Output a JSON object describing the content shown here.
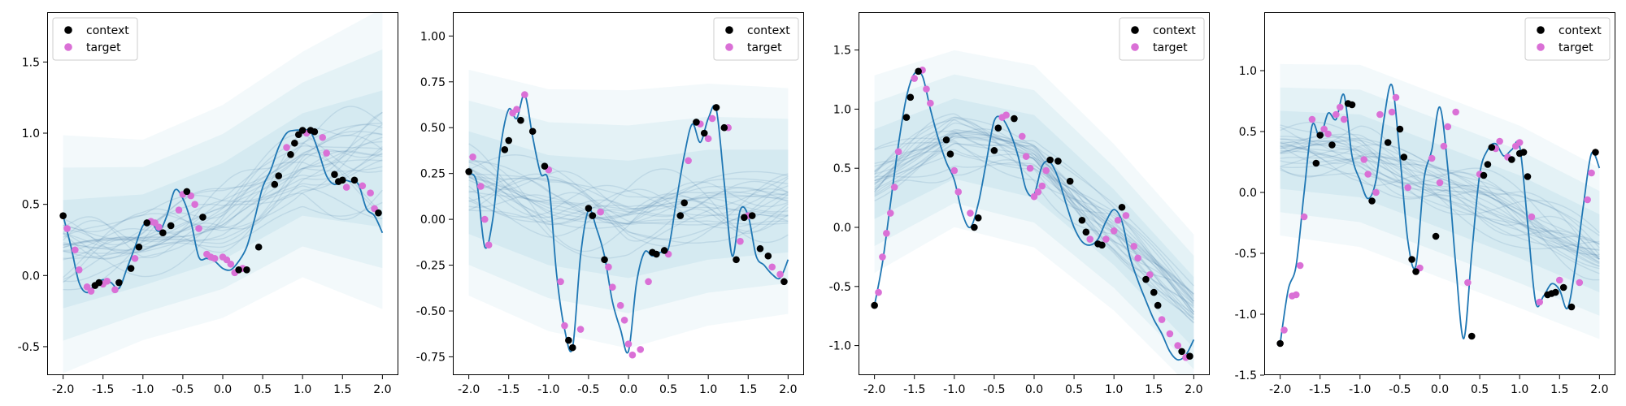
{
  "colors": {
    "context": "#000000",
    "target": "#da70d6",
    "truth_line": "#1f77b4",
    "samples": "#4a7ea8",
    "band": "#add8e6"
  },
  "chart_data": [
    {
      "type": "line",
      "xlim": [
        -2.2,
        2.2
      ],
      "ylim": [
        -0.7,
        1.85
      ],
      "xticks": [
        "-2.0",
        "-1.5",
        "-1.0",
        "-0.5",
        "0.0",
        "0.5",
        "1.0",
        "1.5",
        "2.0"
      ],
      "yticks": [
        "-0.5",
        "0.0",
        "0.5",
        "1.0",
        "1.5"
      ],
      "legend": {
        "position": "top-left",
        "entries": [
          "context",
          "target"
        ]
      },
      "truth": {
        "x": [
          -2.0,
          -1.9,
          -1.8,
          -1.7,
          -1.6,
          -1.5,
          -1.4,
          -1.3,
          -1.2,
          -1.1,
          -1.0,
          -0.9,
          -0.8,
          -0.7,
          -0.6,
          -0.5,
          -0.4,
          -0.3,
          -0.2,
          -0.1,
          0.0,
          0.1,
          0.2,
          0.3,
          0.4,
          0.5,
          0.6,
          0.7,
          0.8,
          0.9,
          1.0,
          1.1,
          1.2,
          1.3,
          1.4,
          1.5,
          1.6,
          1.7,
          1.8,
          1.9,
          2.0
        ],
        "y": [
          0.42,
          0.2,
          -0.05,
          -0.12,
          -0.06,
          -0.03,
          -0.05,
          -0.09,
          0.05,
          0.2,
          0.35,
          0.38,
          0.31,
          0.42,
          0.6,
          0.54,
          0.38,
          0.13,
          0.12,
          0.1,
          0.05,
          0.04,
          0.1,
          0.2,
          0.4,
          0.62,
          0.74,
          0.9,
          1.0,
          1.02,
          1.02,
          1.01,
          0.87,
          0.7,
          0.64,
          0.67,
          0.66,
          0.64,
          0.47,
          0.42,
          0.3
        ]
      },
      "context": {
        "x": [
          -2.0,
          -1.6,
          -1.55,
          -1.3,
          -1.15,
          -1.05,
          -0.95,
          -0.75,
          -0.65,
          -0.45,
          -0.25,
          0.2,
          0.3,
          0.45,
          0.65,
          0.7,
          0.85,
          0.9,
          0.95,
          1.0,
          1.1,
          1.15,
          1.4,
          1.45,
          1.5,
          1.65,
          1.95
        ],
        "y": [
          0.42,
          -0.07,
          -0.05,
          -0.05,
          0.05,
          0.2,
          0.37,
          0.3,
          0.35,
          0.59,
          0.41,
          0.04,
          0.04,
          0.2,
          0.64,
          0.7,
          0.85,
          0.93,
          0.99,
          1.02,
          1.02,
          1.01,
          0.71,
          0.66,
          0.67,
          0.67,
          0.44
        ]
      },
      "target": {
        "x": [
          -1.95,
          -1.85,
          -1.8,
          -1.7,
          -1.65,
          -1.5,
          -1.45,
          -1.35,
          -1.1,
          -0.9,
          -0.85,
          -0.8,
          -0.55,
          -0.5,
          -0.4,
          -0.35,
          -0.3,
          -0.2,
          -0.15,
          -0.1,
          0.0,
          0.05,
          0.1,
          0.15,
          0.25,
          0.8,
          1.05,
          1.25,
          1.3,
          1.55,
          1.75,
          1.85,
          1.9
        ],
        "y": [
          0.33,
          0.18,
          0.04,
          -0.08,
          -0.11,
          -0.06,
          -0.04,
          -0.1,
          0.12,
          0.38,
          0.37,
          0.34,
          0.46,
          0.57,
          0.56,
          0.5,
          0.33,
          0.15,
          0.13,
          0.12,
          0.13,
          0.11,
          0.08,
          0.02,
          0.05,
          0.9,
          1.0,
          0.97,
          0.86,
          0.62,
          0.63,
          0.58,
          0.47
        ]
      },
      "mean": {
        "x": [
          -2.0,
          -1.0,
          0.0,
          1.0,
          2.0
        ],
        "y": [
          0.15,
          0.25,
          0.45,
          0.78,
          0.82
        ]
      },
      "std": [
        0.38,
        0.32,
        0.34,
        0.36,
        0.48
      ]
    },
    {
      "type": "line",
      "xlim": [
        -2.2,
        2.2
      ],
      "ylim": [
        -0.85,
        1.13
      ],
      "xticks": [
        "-2.0",
        "-1.5",
        "-1.0",
        "-0.5",
        "0.0",
        "0.5",
        "1.0",
        "1.5",
        "2.0"
      ],
      "yticks": [
        "-0.75",
        "-0.50",
        "-0.25",
        "0.00",
        "0.25",
        "0.50",
        "0.75",
        "1.00"
      ],
      "legend": {
        "position": "top-right",
        "entries": [
          "context",
          "target"
        ]
      },
      "truth": {
        "x": [
          -2.0,
          -1.9,
          -1.8,
          -1.7,
          -1.6,
          -1.5,
          -1.4,
          -1.3,
          -1.2,
          -1.1,
          -1.0,
          -0.9,
          -0.8,
          -0.7,
          -0.6,
          -0.5,
          -0.4,
          -0.3,
          -0.2,
          -0.1,
          0.0,
          0.1,
          0.2,
          0.3,
          0.4,
          0.5,
          0.6,
          0.7,
          0.8,
          0.9,
          1.0,
          1.1,
          1.2,
          1.3,
          1.4,
          1.5,
          1.6,
          1.7,
          1.8,
          1.9,
          2.0
        ],
        "y": [
          0.25,
          0.2,
          -0.15,
          0.0,
          0.4,
          0.6,
          0.55,
          0.68,
          0.45,
          0.25,
          0.2,
          -0.3,
          -0.6,
          -0.7,
          -0.2,
          0.05,
          -0.05,
          -0.2,
          -0.45,
          -0.6,
          -0.72,
          -0.35,
          -0.18,
          -0.2,
          -0.18,
          -0.16,
          0.1,
          0.35,
          0.52,
          0.42,
          0.55,
          0.6,
          0.2,
          -0.2,
          0.05,
          0.02,
          -0.2,
          -0.25,
          -0.3,
          -0.32,
          -0.22
        ]
      },
      "context": {
        "x": [
          -2.0,
          -1.55,
          -1.5,
          -1.35,
          -1.2,
          -1.05,
          -0.75,
          -0.7,
          -0.5,
          -0.45,
          -0.3,
          0.3,
          0.35,
          0.45,
          0.65,
          0.7,
          0.85,
          0.95,
          1.1,
          1.2,
          1.35,
          1.45,
          1.55,
          1.65,
          1.75,
          1.95
        ],
        "y": [
          0.26,
          0.38,
          0.43,
          0.54,
          0.48,
          0.29,
          -0.66,
          -0.7,
          0.06,
          0.02,
          -0.22,
          -0.18,
          -0.19,
          -0.17,
          0.02,
          0.09,
          0.53,
          0.47,
          0.61,
          0.5,
          -0.22,
          0.01,
          0.02,
          -0.16,
          -0.2,
          -0.34
        ]
      },
      "target": {
        "x": [
          -1.95,
          -1.85,
          -1.8,
          -1.75,
          -1.45,
          -1.4,
          -1.3,
          -1.0,
          -0.85,
          -0.8,
          -0.6,
          -0.35,
          -0.25,
          -0.2,
          -0.1,
          -0.05,
          0.0,
          0.05,
          0.15,
          0.25,
          0.5,
          0.75,
          0.9,
          1.0,
          1.05,
          1.25,
          1.4,
          1.5,
          1.8,
          1.9
        ],
        "y": [
          0.34,
          0.18,
          0.0,
          -0.14,
          0.58,
          0.6,
          0.68,
          0.27,
          -0.34,
          -0.58,
          -0.6,
          0.04,
          -0.26,
          -0.37,
          -0.47,
          -0.55,
          -0.68,
          -0.74,
          -0.71,
          -0.34,
          -0.19,
          0.32,
          0.52,
          0.44,
          0.55,
          0.5,
          -0.12,
          0.02,
          -0.26,
          -0.3
        ]
      },
      "mean": {
        "x": [
          -2.0,
          -1.0,
          0.0,
          1.0,
          2.0
        ],
        "y": [
          0.2,
          0.05,
          0.0,
          0.08,
          0.1
        ]
      },
      "std": [
        0.28,
        0.3,
        0.32,
        0.3,
        0.28
      ]
    },
    {
      "type": "line",
      "xlim": [
        -2.2,
        2.2
      ],
      "ylim": [
        -1.25,
        1.82
      ],
      "xticks": [
        "-2.0",
        "-1.5",
        "-1.0",
        "-0.5",
        "0.0",
        "0.5",
        "1.0",
        "1.5",
        "2.0"
      ],
      "yticks": [
        "-1.0",
        "-0.5",
        "0.0",
        "0.5",
        "1.0",
        "1.5"
      ],
      "legend": {
        "position": "top-right",
        "entries": [
          "context",
          "target"
        ]
      },
      "truth": {
        "x": [
          -2.0,
          -1.9,
          -1.8,
          -1.7,
          -1.6,
          -1.5,
          -1.4,
          -1.3,
          -1.2,
          -1.1,
          -1.0,
          -0.9,
          -0.8,
          -0.7,
          -0.6,
          -0.5,
          -0.4,
          -0.3,
          -0.2,
          -0.1,
          0.0,
          0.1,
          0.2,
          0.3,
          0.4,
          0.5,
          0.6,
          0.7,
          0.8,
          0.9,
          1.0,
          1.1,
          1.2,
          1.3,
          1.4,
          1.5,
          1.6,
          1.7,
          1.8,
          1.9,
          2.0
        ],
        "y": [
          -0.66,
          -0.3,
          0.2,
          0.7,
          1.1,
          1.3,
          1.28,
          1.0,
          0.75,
          0.55,
          0.4,
          0.12,
          0.0,
          0.2,
          0.55,
          0.9,
          0.92,
          0.8,
          0.6,
          0.32,
          0.28,
          0.52,
          0.55,
          0.42,
          0.2,
          0.0,
          -0.12,
          -0.15,
          -0.1,
          0.05,
          0.15,
          0.05,
          -0.25,
          -0.45,
          -0.62,
          -0.78,
          -0.9,
          -1.05,
          -1.12,
          -1.08,
          -0.95
        ]
      },
      "context": {
        "x": [
          -2.0,
          -1.6,
          -1.55,
          -1.45,
          -1.1,
          -1.05,
          -0.75,
          -0.7,
          -0.5,
          -0.45,
          -0.25,
          0.2,
          0.3,
          0.45,
          0.6,
          0.65,
          0.8,
          0.85,
          1.1,
          1.4,
          1.5,
          1.55,
          1.85,
          1.95
        ],
        "y": [
          -0.66,
          0.93,
          1.1,
          1.32,
          0.74,
          0.62,
          0.0,
          0.08,
          0.65,
          0.84,
          0.92,
          0.57,
          0.56,
          0.39,
          0.06,
          -0.04,
          -0.14,
          -0.15,
          0.17,
          -0.44,
          -0.55,
          -0.66,
          -1.05,
          -1.09
        ]
      },
      "target": {
        "x": [
          -1.95,
          -1.9,
          -1.85,
          -1.8,
          -1.75,
          -1.7,
          -1.5,
          -1.4,
          -1.35,
          -1.3,
          -1.0,
          -0.95,
          -0.8,
          -0.4,
          -0.35,
          -0.15,
          -0.1,
          -0.05,
          0.0,
          0.05,
          0.1,
          0.15,
          0.7,
          0.9,
          1.0,
          1.05,
          1.15,
          1.25,
          1.3,
          1.45,
          1.6,
          1.7,
          1.8,
          1.9
        ],
        "y": [
          -0.55,
          -0.25,
          -0.05,
          0.12,
          0.34,
          0.64,
          1.26,
          1.33,
          1.17,
          1.05,
          0.48,
          0.3,
          0.12,
          0.93,
          0.95,
          0.77,
          0.6,
          0.5,
          0.26,
          0.3,
          0.35,
          0.48,
          -0.1,
          -0.1,
          -0.03,
          0.06,
          0.1,
          -0.16,
          -0.26,
          -0.4,
          -0.78,
          -0.9,
          -1.0,
          -1.1
        ]
      },
      "mean": {
        "x": [
          -2.0,
          -1.0,
          0.0,
          1.0,
          2.0
        ],
        "y": [
          0.45,
          0.75,
          0.6,
          0.0,
          -0.72
        ]
      },
      "std": [
        0.38,
        0.34,
        0.35,
        0.32,
        0.3
      ]
    },
    {
      "type": "line",
      "xlim": [
        -2.2,
        2.2
      ],
      "ylim": [
        -1.5,
        1.48
      ],
      "xticks": [
        "-2.0",
        "-1.5",
        "-1.0",
        "-0.5",
        "0.0",
        "0.5",
        "1.0",
        "1.5",
        "2.0"
      ],
      "yticks": [
        "-1.5",
        "-1.0",
        "-0.5",
        "0.0",
        "0.5",
        "1.0"
      ],
      "legend": {
        "position": "top-right",
        "entries": [
          "context",
          "target"
        ]
      },
      "truth": {
        "x": [
          -2.0,
          -1.9,
          -1.8,
          -1.7,
          -1.6,
          -1.5,
          -1.4,
          -1.3,
          -1.2,
          -1.1,
          -1.0,
          -0.9,
          -0.8,
          -0.7,
          -0.6,
          -0.5,
          -0.4,
          -0.3,
          -0.2,
          -0.1,
          0.0,
          0.1,
          0.2,
          0.3,
          0.4,
          0.5,
          0.6,
          0.7,
          0.8,
          0.9,
          1.0,
          1.1,
          1.2,
          1.3,
          1.4,
          1.5,
          1.6,
          1.7,
          1.8,
          1.9,
          2.0
        ],
        "y": [
          -1.24,
          -0.8,
          -0.6,
          0.0,
          0.55,
          0.45,
          0.65,
          0.6,
          0.8,
          0.3,
          0.1,
          -0.05,
          0.1,
          0.6,
          0.88,
          0.3,
          -0.4,
          -0.6,
          0.1,
          0.35,
          0.7,
          0.2,
          -0.6,
          -1.2,
          -0.5,
          0.15,
          0.35,
          0.4,
          0.3,
          0.35,
          0.38,
          -0.25,
          -0.9,
          -0.85,
          -0.75,
          -0.8,
          -0.95,
          -0.6,
          -0.1,
          0.32,
          0.2
        ]
      },
      "context": {
        "x": [
          -2.0,
          -1.55,
          -1.5,
          -1.35,
          -1.15,
          -1.1,
          -0.85,
          -0.65,
          -0.5,
          -0.45,
          -0.35,
          -0.3,
          -0.05,
          0.4,
          0.55,
          0.6,
          0.65,
          0.9,
          1.0,
          1.05,
          1.1,
          1.35,
          1.4,
          1.45,
          1.55,
          1.65,
          1.95
        ],
        "y": [
          -1.24,
          0.24,
          0.47,
          0.39,
          0.73,
          0.72,
          -0.07,
          0.41,
          0.52,
          0.29,
          -0.55,
          -0.65,
          -0.36,
          -1.18,
          0.14,
          0.23,
          0.37,
          0.27,
          0.32,
          0.33,
          0.13,
          -0.84,
          -0.83,
          -0.82,
          -0.78,
          -0.94,
          0.33
        ]
      },
      "target": {
        "x": [
          -1.95,
          -1.85,
          -1.8,
          -1.75,
          -1.7,
          -1.6,
          -1.45,
          -1.4,
          -1.3,
          -1.25,
          -1.2,
          -0.95,
          -0.9,
          -0.8,
          -0.75,
          -0.6,
          -0.55,
          -0.4,
          -0.25,
          -0.1,
          0.0,
          0.05,
          0.1,
          0.2,
          0.35,
          0.5,
          0.7,
          0.75,
          0.85,
          0.95,
          1.0,
          1.15,
          1.25,
          1.5,
          1.75,
          1.85,
          1.9
        ],
        "y": [
          -1.13,
          -0.85,
          -0.84,
          -0.6,
          -0.2,
          0.6,
          0.52,
          0.48,
          0.64,
          0.7,
          0.6,
          0.27,
          0.15,
          0.0,
          0.64,
          0.66,
          0.78,
          0.04,
          -0.62,
          0.28,
          0.08,
          0.38,
          0.54,
          0.66,
          -0.74,
          0.15,
          0.36,
          0.42,
          0.29,
          0.38,
          0.41,
          -0.2,
          -0.9,
          -0.72,
          -0.74,
          -0.06,
          0.16
        ]
      },
      "mean": {
        "x": [
          -2.0,
          -1.0,
          0.0,
          1.0,
          2.0
        ],
        "y": [
          0.35,
          0.3,
          0.05,
          -0.2,
          -0.5
        ]
      },
      "std": [
        0.32,
        0.34,
        0.34,
        0.34,
        0.32
      ]
    }
  ]
}
